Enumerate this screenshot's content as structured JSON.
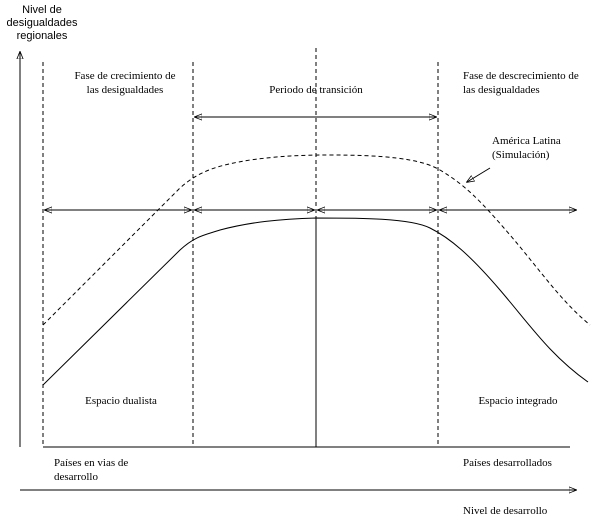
{
  "y_axis_label": [
    "Nivel de",
    "desigualdades",
    "regionales"
  ],
  "x_axis_label": "Nivel de desarrollo",
  "phases": {
    "growth": [
      "Fase de crecimiento de",
      "las desigualdades"
    ],
    "transition": "Periodo de transición",
    "decline": [
      "Fase de descrecimiento de",
      "las desigualdades"
    ]
  },
  "annotation": [
    "América Latina",
    "(Simulación)"
  ],
  "spaces": {
    "dualist": "Espacio dualista",
    "integrated": "Espacio integrado"
  },
  "countries": {
    "developing": [
      "Países en vias de",
      "desarrollo"
    ],
    "developed": "Países desarrollados"
  }
}
